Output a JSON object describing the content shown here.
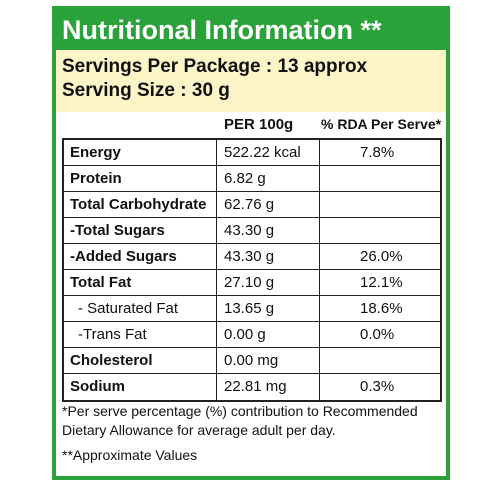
{
  "title": "Nutritional Information **",
  "serving": {
    "per_package": "Servings Per Package : 13 approx",
    "size": "Serving Size : 30 g"
  },
  "columns": {
    "per_100g": "PER 100g",
    "rda": "% RDA Per Serve*"
  },
  "rows": [
    {
      "name": "Energy",
      "value": "522.22 kcal",
      "rda": "7.8%"
    },
    {
      "name": "Protein",
      "value": "6.82 g",
      "rda": ""
    },
    {
      "name": "Total Carbohydrate",
      "value": "62.76 g",
      "rda": ""
    },
    {
      "name": "-Total Sugars",
      "value": "43.30 g",
      "rda": ""
    },
    {
      "name": "-Added Sugars",
      "value": "43.30 g",
      "rda": "26.0%"
    },
    {
      "name": "Total Fat",
      "value": "27.10 g",
      "rda": "12.1%"
    },
    {
      "name": "- Saturated Fat",
      "value": "13.65 g",
      "rda": "18.6%"
    },
    {
      "name": "-Trans Fat",
      "value": "0.00 g",
      "rda": "0.0%"
    },
    {
      "name": "Cholesterol",
      "value": "0.00 mg",
      "rda": ""
    },
    {
      "name": "Sodium",
      "value": "22.81 mg",
      "rda": "0.3%"
    }
  ],
  "footer": {
    "note1": "*Per serve percentage (%) contribution to Recommended Dietary Allowance for average adult per day.",
    "note2": "**Approximate Values"
  },
  "colors": {
    "accent": "#2aa23a",
    "serving_bg": "#fdf5c8"
  }
}
